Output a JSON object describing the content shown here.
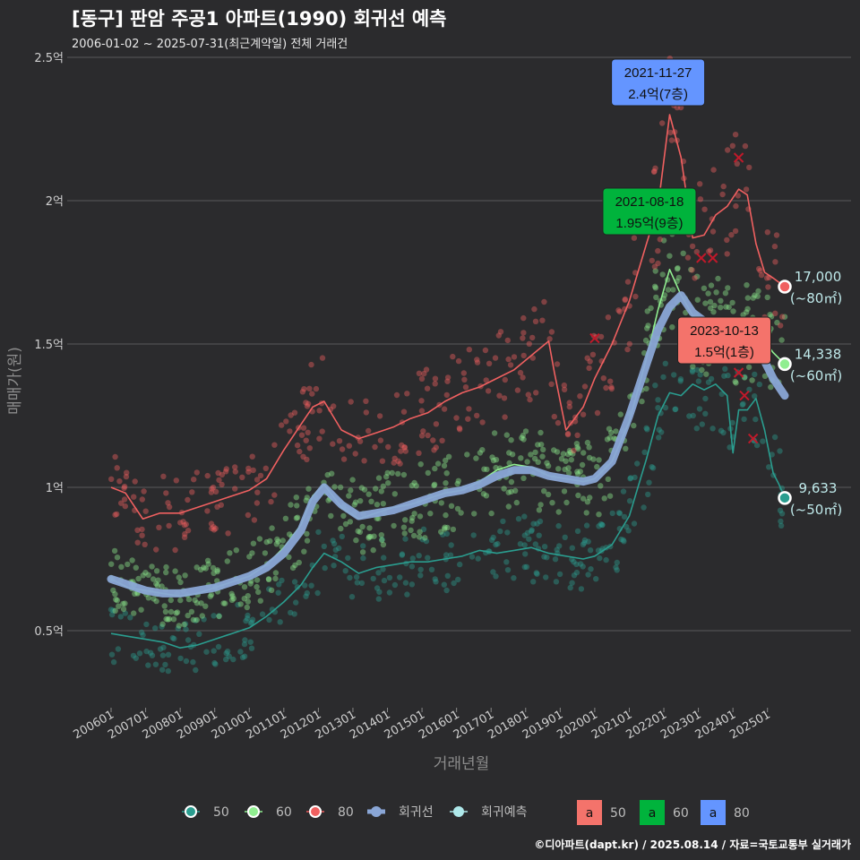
{
  "title": "[동구] 판암 주공1 아파트(1990) 회귀선 예측",
  "subtitle": "2006-01-02 ~ 2025-07-31(최근계약일) 전체 거래건",
  "caption": "©디아파트(dapt.kr) / 2025.08.14 / 자료=국토교통부 실거래가",
  "colors": {
    "s50": "#2a9d8f",
    "s60": "#90ee90",
    "s80": "#f06060",
    "reg": "#8aa6d6",
    "pred": "#aee8ea",
    "bg": "#2b2b2d",
    "grid": "#5a5a5a",
    "box50": "#f4736b",
    "box60": "#00b33c",
    "box80": "#6495ff"
  },
  "chart_data": {
    "type": "line",
    "xlabel": "거래년월",
    "ylabel": "매매가(원)",
    "x_range": [
      "2006-01",
      "2025-07"
    ],
    "ylim": [
      0.2,
      2.5
    ],
    "y_ticks": [
      {
        "v": 0.5,
        "label": "0.5억"
      },
      {
        "v": 1.0,
        "label": "1억"
      },
      {
        "v": 1.5,
        "label": "1.5억"
      },
      {
        "v": 2.0,
        "label": "2억"
      },
      {
        "v": 2.5,
        "label": "2.5억"
      }
    ],
    "x_ticks": [
      "200601",
      "200701",
      "200801",
      "200901",
      "201001",
      "201101",
      "201201",
      "201301",
      "201401",
      "201501",
      "201601",
      "201701",
      "201801",
      "201901",
      "202001",
      "202101",
      "202201",
      "202301",
      "202401",
      "202501"
    ],
    "series": [
      {
        "name": "50",
        "key": "s50",
        "points": [
          [
            "2006-01",
            0.49
          ],
          [
            "2006-07",
            0.48
          ],
          [
            "2007-01",
            0.47
          ],
          [
            "2007-07",
            0.46
          ],
          [
            "2008-01",
            0.44
          ],
          [
            "2008-07",
            0.45
          ],
          [
            "2009-01",
            0.47
          ],
          [
            "2009-07",
            0.49
          ],
          [
            "2010-01",
            0.51
          ],
          [
            "2010-07",
            0.55
          ],
          [
            "2011-01",
            0.6
          ],
          [
            "2011-07",
            0.66
          ],
          [
            "2011-11",
            0.72
          ],
          [
            "2012-03",
            0.77
          ],
          [
            "2012-09",
            0.74
          ],
          [
            "2013-03",
            0.7
          ],
          [
            "2013-09",
            0.72
          ],
          [
            "2014-03",
            0.73
          ],
          [
            "2014-09",
            0.74
          ],
          [
            "2015-03",
            0.74
          ],
          [
            "2015-09",
            0.75
          ],
          [
            "2016-03",
            0.76
          ],
          [
            "2016-09",
            0.78
          ],
          [
            "2017-03",
            0.77
          ],
          [
            "2017-09",
            0.78
          ],
          [
            "2018-03",
            0.79
          ],
          [
            "2018-09",
            0.77
          ],
          [
            "2019-03",
            0.76
          ],
          [
            "2019-09",
            0.75
          ],
          [
            "2020-01",
            0.76
          ],
          [
            "2020-07",
            0.8
          ],
          [
            "2021-01",
            0.9
          ],
          [
            "2021-07",
            1.1
          ],
          [
            "2021-11",
            1.25
          ],
          [
            "2022-03",
            1.33
          ],
          [
            "2022-07",
            1.32
          ],
          [
            "2022-11",
            1.36
          ],
          [
            "2023-03",
            1.34
          ],
          [
            "2023-07",
            1.36
          ],
          [
            "2023-11",
            1.32
          ],
          [
            "2024-01",
            1.12
          ],
          [
            "2024-03",
            1.27
          ],
          [
            "2024-06",
            1.27
          ],
          [
            "2024-09",
            1.31
          ],
          [
            "2024-12",
            1.2
          ],
          [
            "2025-03",
            1.05
          ],
          [
            "2025-05",
            1.01
          ],
          [
            "2025-07",
            0.963
          ]
        ]
      },
      {
        "name": "60",
        "key": "s60",
        "points": [
          [
            "2006-01",
            0.68
          ],
          [
            "2006-07",
            0.65
          ],
          [
            "2007-01",
            0.64
          ],
          [
            "2007-07",
            0.63
          ],
          [
            "2008-01",
            0.62
          ],
          [
            "2008-07",
            0.63
          ],
          [
            "2009-01",
            0.65
          ],
          [
            "2009-07",
            0.67
          ],
          [
            "2010-01",
            0.69
          ],
          [
            "2010-07",
            0.73
          ],
          [
            "2011-01",
            0.79
          ],
          [
            "2011-07",
            0.87
          ],
          [
            "2011-11",
            0.97
          ],
          [
            "2012-03",
            1.01
          ],
          [
            "2012-09",
            0.93
          ],
          [
            "2013-03",
            0.89
          ],
          [
            "2013-09",
            0.91
          ],
          [
            "2014-03",
            0.93
          ],
          [
            "2014-09",
            0.94
          ],
          [
            "2015-03",
            0.96
          ],
          [
            "2015-09",
            0.98
          ],
          [
            "2016-03",
            0.99
          ],
          [
            "2016-09",
            1.02
          ],
          [
            "2017-03",
            1.06
          ],
          [
            "2017-09",
            1.08
          ],
          [
            "2018-03",
            1.07
          ],
          [
            "2018-09",
            1.04
          ],
          [
            "2019-03",
            1.03
          ],
          [
            "2019-09",
            1.02
          ],
          [
            "2020-01",
            1.03
          ],
          [
            "2020-07",
            1.09
          ],
          [
            "2021-01",
            1.23
          ],
          [
            "2021-07",
            1.45
          ],
          [
            "2021-11",
            1.62
          ],
          [
            "2022-03",
            1.76
          ],
          [
            "2022-07",
            1.67
          ],
          [
            "2022-11",
            1.6
          ],
          [
            "2023-03",
            1.56
          ],
          [
            "2023-07",
            1.57
          ],
          [
            "2023-11",
            1.55
          ],
          [
            "2024-03",
            1.53
          ],
          [
            "2024-06",
            1.54
          ],
          [
            "2024-09",
            1.53
          ],
          [
            "2024-12",
            1.51
          ],
          [
            "2025-03",
            1.47
          ],
          [
            "2025-07",
            1.43
          ]
        ]
      },
      {
        "name": "80",
        "key": "s80",
        "points": [
          [
            "2006-01",
            1.0
          ],
          [
            "2006-06",
            0.98
          ],
          [
            "2006-12",
            0.89
          ],
          [
            "2007-06",
            0.91
          ],
          [
            "2008-01",
            0.91
          ],
          [
            "2008-07",
            0.93
          ],
          [
            "2009-01",
            0.95
          ],
          [
            "2009-07",
            0.97
          ],
          [
            "2010-01",
            0.99
          ],
          [
            "2010-07",
            1.03
          ],
          [
            "2011-01",
            1.13
          ],
          [
            "2011-07",
            1.22
          ],
          [
            "2011-11",
            1.28
          ],
          [
            "2012-03",
            1.3
          ],
          [
            "2012-09",
            1.2
          ],
          [
            "2013-03",
            1.17
          ],
          [
            "2013-09",
            1.19
          ],
          [
            "2014-03",
            1.21
          ],
          [
            "2014-09",
            1.24
          ],
          [
            "2015-03",
            1.26
          ],
          [
            "2015-09",
            1.3
          ],
          [
            "2016-03",
            1.33
          ],
          [
            "2016-09",
            1.35
          ],
          [
            "2017-03",
            1.38
          ],
          [
            "2017-09",
            1.41
          ],
          [
            "2018-03",
            1.46
          ],
          [
            "2018-09",
            1.51
          ],
          [
            "2018-11",
            1.4
          ],
          [
            "2019-03",
            1.2
          ],
          [
            "2019-09",
            1.28
          ],
          [
            "2020-01",
            1.38
          ],
          [
            "2020-07",
            1.5
          ],
          [
            "2021-01",
            1.65
          ],
          [
            "2021-07",
            1.85
          ],
          [
            "2021-11",
            1.98
          ],
          [
            "2022-03",
            2.3
          ],
          [
            "2022-07",
            2.15
          ],
          [
            "2022-11",
            1.87
          ],
          [
            "2023-03",
            1.88
          ],
          [
            "2023-07",
            1.95
          ],
          [
            "2023-11",
            1.98
          ],
          [
            "2024-03",
            2.04
          ],
          [
            "2024-06",
            2.02
          ],
          [
            "2024-09",
            1.85
          ],
          [
            "2024-12",
            1.75
          ],
          [
            "2025-03",
            1.73
          ],
          [
            "2025-07",
            1.7
          ]
        ]
      },
      {
        "name": "회귀선",
        "key": "reg",
        "points": [
          [
            "2006-01",
            0.68
          ],
          [
            "2006-07",
            0.66
          ],
          [
            "2007-01",
            0.64
          ],
          [
            "2007-07",
            0.63
          ],
          [
            "2008-01",
            0.63
          ],
          [
            "2008-07",
            0.64
          ],
          [
            "2009-01",
            0.65
          ],
          [
            "2009-07",
            0.67
          ],
          [
            "2010-01",
            0.69
          ],
          [
            "2010-07",
            0.72
          ],
          [
            "2011-01",
            0.77
          ],
          [
            "2011-07",
            0.85
          ],
          [
            "2011-11",
            0.95
          ],
          [
            "2012-03",
            1.0
          ],
          [
            "2012-09",
            0.94
          ],
          [
            "2013-03",
            0.9
          ],
          [
            "2013-09",
            0.91
          ],
          [
            "2014-03",
            0.92
          ],
          [
            "2014-09",
            0.94
          ],
          [
            "2015-03",
            0.96
          ],
          [
            "2015-09",
            0.98
          ],
          [
            "2016-03",
            0.99
          ],
          [
            "2016-09",
            1.01
          ],
          [
            "2017-03",
            1.04
          ],
          [
            "2017-09",
            1.06
          ],
          [
            "2018-03",
            1.06
          ],
          [
            "2018-09",
            1.04
          ],
          [
            "2019-03",
            1.03
          ],
          [
            "2019-09",
            1.02
          ],
          [
            "2020-01",
            1.03
          ],
          [
            "2020-07",
            1.09
          ],
          [
            "2021-01",
            1.25
          ],
          [
            "2021-07",
            1.43
          ],
          [
            "2021-11",
            1.55
          ],
          [
            "2022-03",
            1.63
          ],
          [
            "2022-07",
            1.67
          ],
          [
            "2022-11",
            1.61
          ],
          [
            "2023-03",
            1.58
          ],
          [
            "2023-07",
            1.57
          ],
          [
            "2023-11",
            1.57
          ],
          [
            "2024-03",
            1.53
          ],
          [
            "2024-06",
            1.52
          ],
          [
            "2024-09",
            1.49
          ],
          [
            "2024-12",
            1.44
          ],
          [
            "2025-03",
            1.38
          ],
          [
            "2025-07",
            1.32
          ]
        ]
      }
    ],
    "end_points": [
      {
        "key": "s80",
        "x": "2025-07",
        "y": 1.7,
        "value": "17,000",
        "area": "(~80㎡)"
      },
      {
        "key": "s60",
        "x": "2025-07",
        "y": 1.43,
        "value": "14,338",
        "area": "(~60㎡)"
      },
      {
        "key": "s50",
        "x": "2025-07",
        "y": 0.963,
        "value": "9,633",
        "area": "(~50㎡)"
      }
    ],
    "callouts": [
      {
        "key": "box80",
        "x": "2021-11",
        "y": 2.4,
        "lines": [
          "2021-11-27",
          "2.4억(7층)"
        ]
      },
      {
        "key": "box60",
        "x": "2021-08",
        "y": 1.95,
        "lines": [
          "2021-08-18",
          "1.95억(9층)"
        ]
      },
      {
        "key": "box50",
        "x": "2023-10",
        "y": 1.5,
        "lines": [
          "2023-10-13",
          "1.5억(1층)"
        ]
      }
    ],
    "cross_marks": [
      {
        "x": "2020-01",
        "y": 1.52
      },
      {
        "x": "2023-02",
        "y": 1.8
      },
      {
        "x": "2023-06",
        "y": 1.8
      },
      {
        "x": "2024-03",
        "y": 2.15
      },
      {
        "x": "2024-03",
        "y": 1.4
      },
      {
        "x": "2024-05",
        "y": 1.32
      },
      {
        "x": "2024-08",
        "y": 1.17
      }
    ],
    "legend": {
      "lines": [
        {
          "key": "s50",
          "label": "50"
        },
        {
          "key": "s60",
          "label": "60"
        },
        {
          "key": "s80",
          "label": "80"
        },
        {
          "key": "reg",
          "label": "회귀선"
        },
        {
          "key": "pred",
          "label": "회귀예측"
        }
      ],
      "boxes": [
        {
          "key": "box50",
          "letter": "a",
          "label": "50"
        },
        {
          "key": "box60",
          "letter": "a",
          "label": "60"
        },
        {
          "key": "box80",
          "letter": "a",
          "label": "80"
        }
      ]
    }
  }
}
